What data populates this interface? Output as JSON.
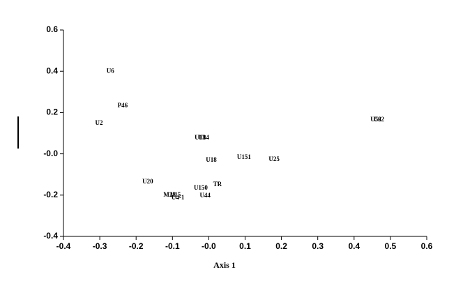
{
  "chart_data": {
    "type": "scatter",
    "xlabel": "Axis 1",
    "point_labels": [
      "U6",
      "P46",
      "U2",
      "U13",
      "U84",
      "U18",
      "U151",
      "U25",
      "U52",
      "U62",
      "U20",
      "TR",
      "U150",
      "U44",
      "M28",
      "U15",
      "U4-1"
    ],
    "x": [
      -0.271,
      -0.237,
      -0.302,
      -0.024,
      -0.014,
      0.007,
      0.097,
      0.18,
      0.46,
      0.468,
      -0.168,
      0.024,
      -0.022,
      -0.01,
      -0.108,
      -0.092,
      -0.085
    ],
    "values": [
      0.4,
      0.232,
      0.147,
      0.076,
      0.076,
      -0.032,
      -0.018,
      -0.028,
      0.164,
      0.164,
      -0.136,
      -0.15,
      -0.167,
      -0.204,
      -0.201,
      -0.201,
      -0.214
    ],
    "xlim": [
      -0.4,
      0.6
    ],
    "ylim": [
      -0.4,
      0.6
    ],
    "xticks": [
      -0.4,
      -0.3,
      -0.2,
      -0.1,
      {
        "value": 0,
        "label": "-0.0"
      },
      0.1,
      0.2,
      0.3,
      0.4,
      0.5,
      0.6
    ],
    "yticks": [
      -0.4,
      -0.2,
      {
        "value": 0,
        "label": "-0.0"
      },
      0.2,
      0.4,
      0.6
    ]
  }
}
